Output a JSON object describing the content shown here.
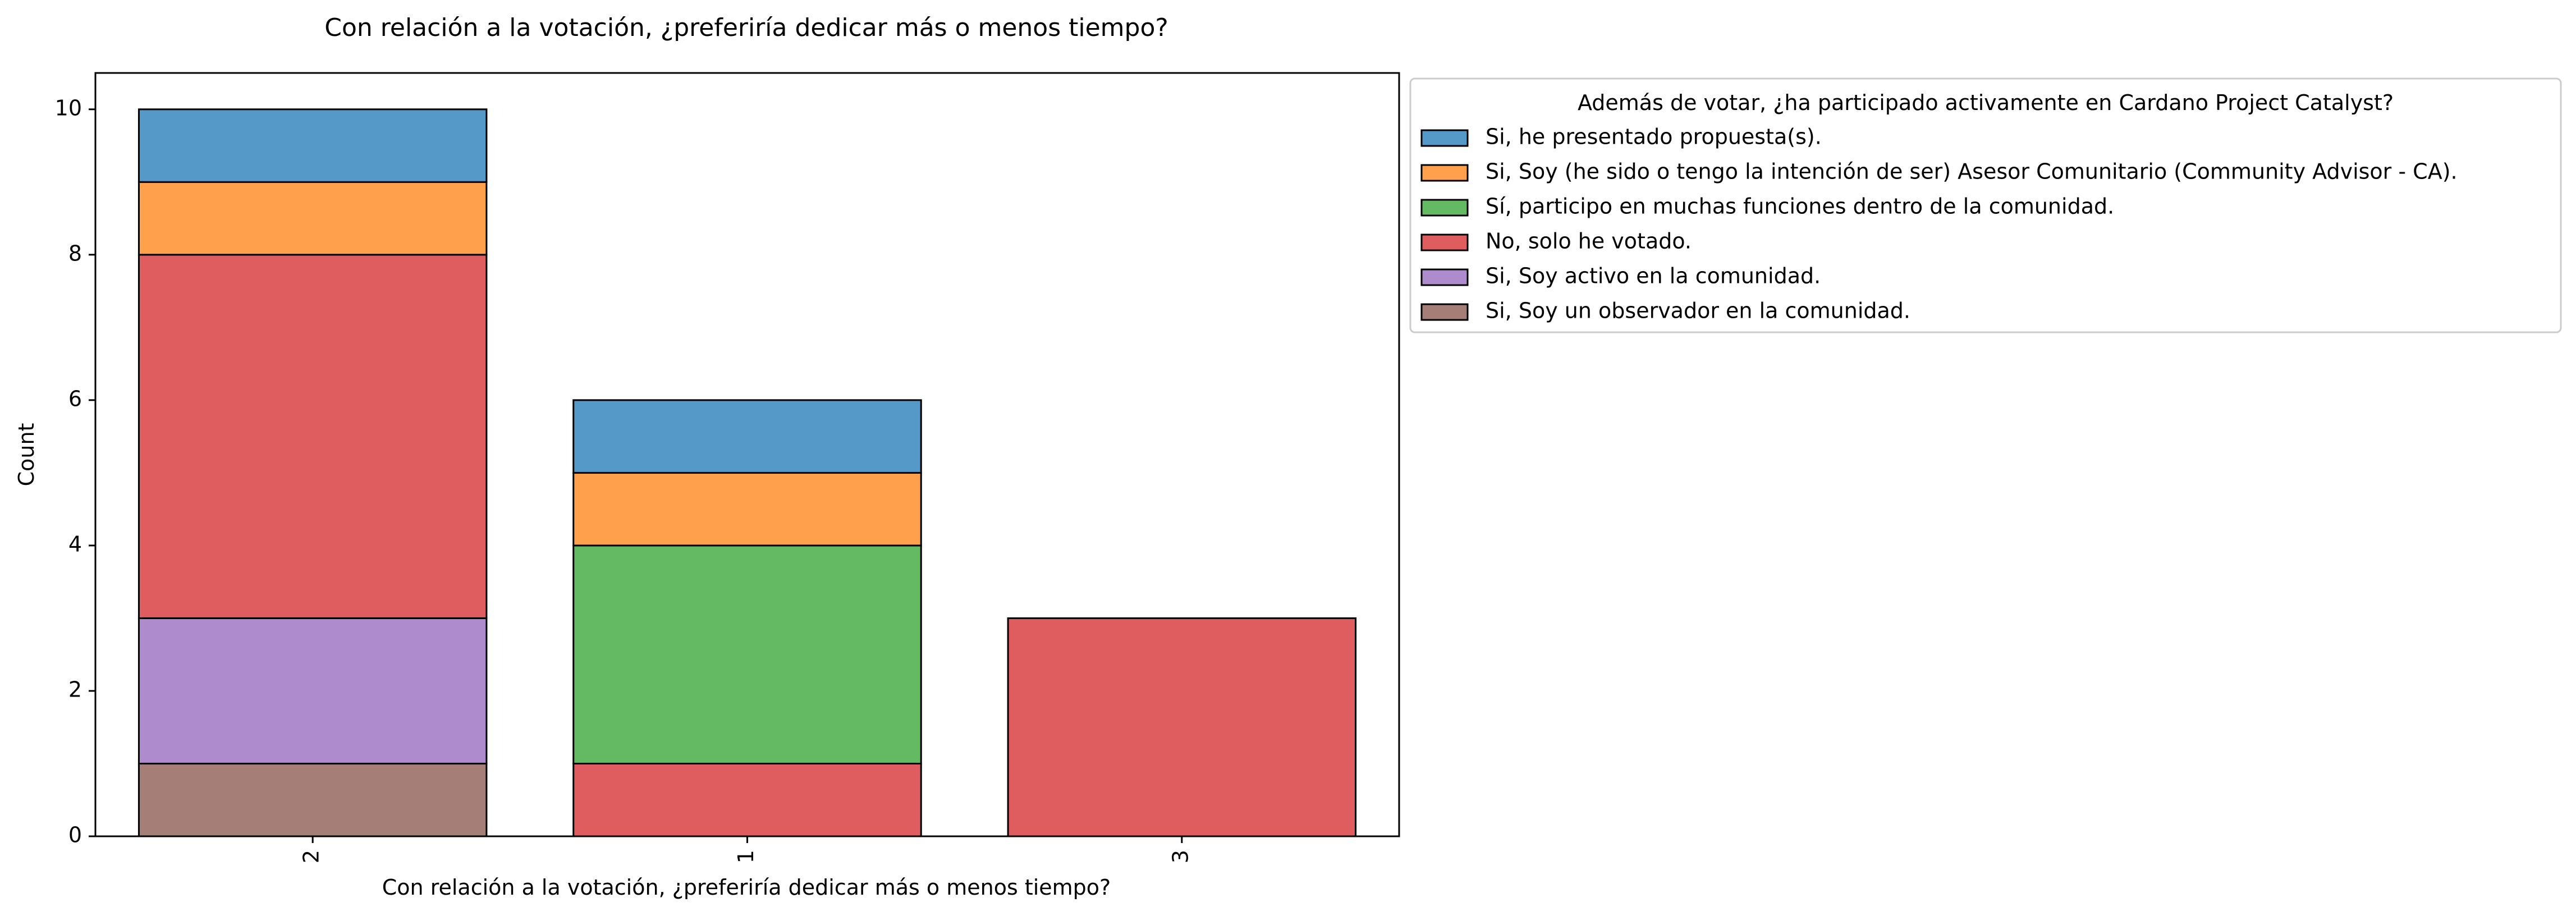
{
  "chart_data": {
    "type": "bar",
    "stacked": true,
    "title": "Con relación a la votación, ¿preferiría dedicar más o menos tiempo?",
    "xlabel": "Con relación a la votación, ¿preferiría dedicar más o menos tiempo?",
    "ylabel": "Count",
    "categories": [
      "2",
      "1",
      "3"
    ],
    "ylim": [
      0,
      10.5
    ],
    "yticks": [
      0,
      2,
      4,
      6,
      8,
      10
    ],
    "grid": false,
    "legend": {
      "title": "Además de votar, ¿ha participado activamente en Cardano Project Catalyst?",
      "placement": "outside upper right"
    },
    "series": [
      {
        "name": "Si, he presentado propuesta(s).",
        "color": "#5499c8",
        "values": [
          1,
          1,
          0
        ]
      },
      {
        "name": "Si, Soy (he sido o tengo la intención de ser) Asesor Comunitario (Community Advisor - CA).",
        "color": "#ffa04c",
        "values": [
          1,
          1,
          0
        ]
      },
      {
        "name": "Sí, participo en muchas funciones dentro de la comunidad.",
        "color": "#63ba62",
        "values": [
          0,
          3,
          0
        ]
      },
      {
        "name": "No, solo he votado.",
        "color": "#df5d5e",
        "values": [
          5,
          1,
          3
        ]
      },
      {
        "name": "Si, Soy activo en la comunidad.",
        "color": "#ae8bcc",
        "values": [
          2,
          0,
          0
        ]
      },
      {
        "name": "Si, Soy un observador en la comunidad.",
        "color": "#a57f77",
        "values": [
          1,
          0,
          0
        ]
      }
    ]
  }
}
